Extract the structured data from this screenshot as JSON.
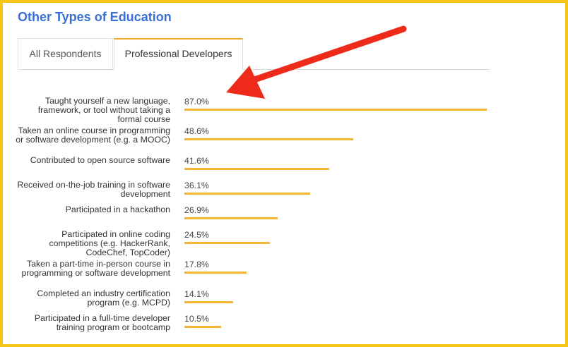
{
  "header": {
    "title": "Other Types of Education"
  },
  "tabs": [
    {
      "label": "All Respondents",
      "active": false
    },
    {
      "label": "Professional Developers",
      "active": true
    }
  ],
  "colors": {
    "frame": "#f5c518",
    "title": "#3a6fd4",
    "bar": "#f5b731",
    "arrow": "#ee2b1a",
    "active_tab_accent": "#f0a818"
  },
  "annotation": {
    "icon": "red-arrow-icon",
    "points_to": "Taught yourself a new language, framework, or tool without taking a formal course"
  },
  "chart_data": {
    "type": "bar",
    "orientation": "horizontal",
    "title": "Other Types of Education",
    "categories": [
      "Taught yourself a new language, framework, or tool without taking a formal course",
      "Taken an online course in programming or software development (e.g. a MOOC)",
      "Contributed to open source software",
      "Received on-the-job training in software development",
      "Participated in a hackathon",
      "Participated in online coding competitions (e.g. HackerRank, CodeChef, TopCoder)",
      "Taken a part-time in-person course in programming or software development",
      "Completed an industry certification program (e.g. MCPD)",
      "Participated in a full-time developer training program or bootcamp"
    ],
    "values": [
      87.0,
      48.6,
      41.6,
      36.1,
      26.9,
      24.5,
      17.8,
      14.1,
      10.5
    ],
    "value_labels": [
      "87.0%",
      "48.6%",
      "41.6%",
      "36.1%",
      "26.9%",
      "24.5%",
      "17.8%",
      "14.1%",
      "10.5%"
    ],
    "xlim": [
      0,
      87.0
    ],
    "grid": false,
    "legend": "none"
  }
}
